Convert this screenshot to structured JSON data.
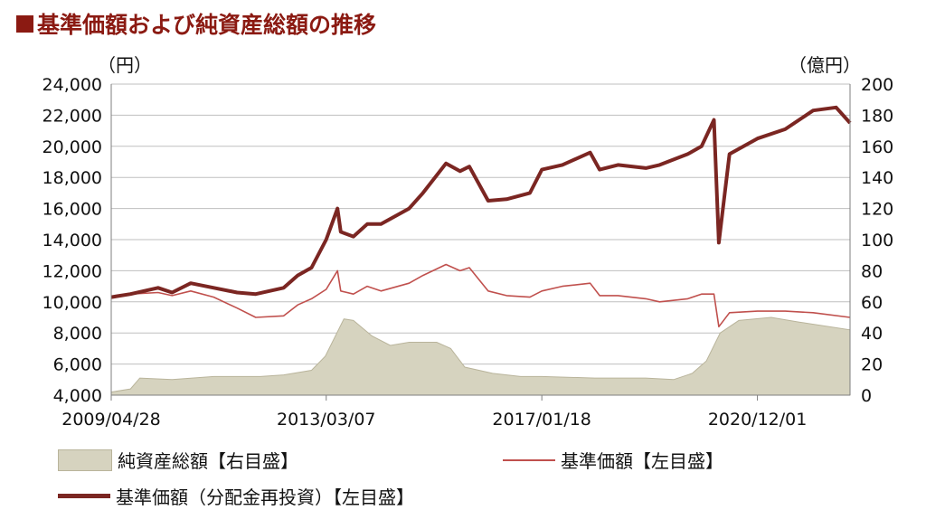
{
  "title": "基準価額および純資産総額の推移",
  "left_unit": "（円）",
  "right_unit": "（億円）",
  "colors": {
    "title": "#8b1a12",
    "nav": "#c0504d",
    "nav_reinvested": "#7b2622",
    "assets_fill": "#d6d3bf",
    "grid": "#bfbfbf"
  },
  "legend": {
    "assets": "純資産総額【右目盛】",
    "nav": "基準価額【左目盛】",
    "nav_reinvested": "基準価額（分配金再投資）【左目盛】"
  },
  "chart_data": {
    "type": "line",
    "x_tick_labels": [
      "2009/04/28",
      "2013/03/07",
      "2017/01/18",
      "2020/12/01"
    ],
    "x_tick_dates": [
      "2009-04-28",
      "2013-03-07",
      "2017-01-18",
      "2020-12-01"
    ],
    "x_range": [
      "2009-04-28",
      "2022-07-31"
    ],
    "y_left": {
      "min": 4000,
      "max": 24000,
      "step": 2000,
      "ticks": [
        "4,000",
        "6,000",
        "8,000",
        "10,000",
        "12,000",
        "14,000",
        "16,000",
        "18,000",
        "20,000",
        "22,000",
        "24,000"
      ]
    },
    "y_right": {
      "min": 0,
      "max": 200,
      "step": 20,
      "ticks": [
        "0",
        "20",
        "40",
        "60",
        "80",
        "100",
        "120",
        "140",
        "160",
        "180",
        "200"
      ]
    },
    "grid": true,
    "legend_position": "bottom",
    "series": [
      {
        "name": "純資産総額【右目盛】",
        "type": "area",
        "axis": "right",
        "points": [
          [
            "2009-04-28",
            2
          ],
          [
            "2009-09-01",
            4
          ],
          [
            "2009-11-01",
            11
          ],
          [
            "2010-06-01",
            10
          ],
          [
            "2011-03-01",
            12
          ],
          [
            "2012-01-01",
            12
          ],
          [
            "2012-06-01",
            13
          ],
          [
            "2012-12-01",
            16
          ],
          [
            "2013-03-01",
            25
          ],
          [
            "2013-07-01",
            49
          ],
          [
            "2013-09-01",
            48
          ],
          [
            "2014-01-01",
            38
          ],
          [
            "2014-05-01",
            32
          ],
          [
            "2014-09-01",
            34
          ],
          [
            "2015-03-01",
            34
          ],
          [
            "2015-06-01",
            30
          ],
          [
            "2015-09-01",
            18
          ],
          [
            "2016-03-01",
            14
          ],
          [
            "2016-09-01",
            12
          ],
          [
            "2017-01-18",
            12
          ],
          [
            "2018-01-01",
            11
          ],
          [
            "2018-12-01",
            11
          ],
          [
            "2019-06-01",
            10
          ],
          [
            "2019-10-01",
            14
          ],
          [
            "2020-01-01",
            22
          ],
          [
            "2020-04-01",
            40
          ],
          [
            "2020-08-01",
            48
          ],
          [
            "2021-03-01",
            50
          ],
          [
            "2021-09-01",
            47
          ],
          [
            "2022-07-31",
            42
          ]
        ]
      },
      {
        "name": "基準価額【左目盛】",
        "type": "line",
        "axis": "left",
        "points": [
          [
            "2009-04-28",
            10300
          ],
          [
            "2009-09-01",
            10500
          ],
          [
            "2010-03-01",
            10600
          ],
          [
            "2010-06-01",
            10400
          ],
          [
            "2010-10-01",
            10700
          ],
          [
            "2011-03-01",
            10300
          ],
          [
            "2011-08-01",
            9600
          ],
          [
            "2011-12-01",
            9000
          ],
          [
            "2012-06-01",
            9100
          ],
          [
            "2012-09-01",
            9800
          ],
          [
            "2012-12-01",
            10200
          ],
          [
            "2013-03-07",
            10800
          ],
          [
            "2013-05-20",
            12000
          ],
          [
            "2013-06-10",
            10700
          ],
          [
            "2013-09-01",
            10500
          ],
          [
            "2013-12-01",
            11000
          ],
          [
            "2014-03-01",
            10700
          ],
          [
            "2014-09-01",
            11200
          ],
          [
            "2014-12-01",
            11700
          ],
          [
            "2015-05-01",
            12400
          ],
          [
            "2015-08-01",
            12000
          ],
          [
            "2015-10-01",
            12200
          ],
          [
            "2016-02-01",
            10700
          ],
          [
            "2016-06-01",
            10400
          ],
          [
            "2016-11-01",
            10300
          ],
          [
            "2017-01-18",
            10700
          ],
          [
            "2017-06-01",
            11000
          ],
          [
            "2017-12-01",
            11200
          ],
          [
            "2018-02-01",
            10400
          ],
          [
            "2018-06-01",
            10400
          ],
          [
            "2018-12-01",
            10200
          ],
          [
            "2019-03-01",
            10000
          ],
          [
            "2019-09-01",
            10200
          ],
          [
            "2019-12-01",
            10500
          ],
          [
            "2020-02-20",
            10500
          ],
          [
            "2020-03-23",
            8400
          ],
          [
            "2020-06-01",
            9300
          ],
          [
            "2020-12-01",
            9400
          ],
          [
            "2021-06-01",
            9400
          ],
          [
            "2021-12-01",
            9300
          ],
          [
            "2022-07-31",
            9000
          ]
        ]
      },
      {
        "name": "基準価額（分配金再投資）【左目盛】",
        "type": "line",
        "axis": "left",
        "points": [
          [
            "2009-04-28",
            10300
          ],
          [
            "2009-09-01",
            10500
          ],
          [
            "2010-03-01",
            10900
          ],
          [
            "2010-06-01",
            10600
          ],
          [
            "2010-10-01",
            11200
          ],
          [
            "2011-03-01",
            10900
          ],
          [
            "2011-08-01",
            10600
          ],
          [
            "2011-12-01",
            10500
          ],
          [
            "2012-06-01",
            10900
          ],
          [
            "2012-09-01",
            11700
          ],
          [
            "2012-12-01",
            12200
          ],
          [
            "2013-03-07",
            14000
          ],
          [
            "2013-05-20",
            16000
          ],
          [
            "2013-06-10",
            14500
          ],
          [
            "2013-09-01",
            14200
          ],
          [
            "2013-12-01",
            15000
          ],
          [
            "2014-03-01",
            15000
          ],
          [
            "2014-09-01",
            16000
          ],
          [
            "2014-12-01",
            17000
          ],
          [
            "2015-05-01",
            18900
          ],
          [
            "2015-08-01",
            18400
          ],
          [
            "2015-10-01",
            18700
          ],
          [
            "2016-02-01",
            16500
          ],
          [
            "2016-06-01",
            16600
          ],
          [
            "2016-11-01",
            17000
          ],
          [
            "2017-01-18",
            18500
          ],
          [
            "2017-06-01",
            18800
          ],
          [
            "2017-12-01",
            19600
          ],
          [
            "2018-02-01",
            18500
          ],
          [
            "2018-06-01",
            18800
          ],
          [
            "2018-12-01",
            18600
          ],
          [
            "2019-03-01",
            18800
          ],
          [
            "2019-09-01",
            19500
          ],
          [
            "2019-12-01",
            20000
          ],
          [
            "2020-02-20",
            21700
          ],
          [
            "2020-03-23",
            13800
          ],
          [
            "2020-06-01",
            19500
          ],
          [
            "2020-12-01",
            20500
          ],
          [
            "2021-06-01",
            21100
          ],
          [
            "2021-12-01",
            22300
          ],
          [
            "2022-05-01",
            22500
          ],
          [
            "2022-07-31",
            21500
          ]
        ]
      }
    ]
  }
}
